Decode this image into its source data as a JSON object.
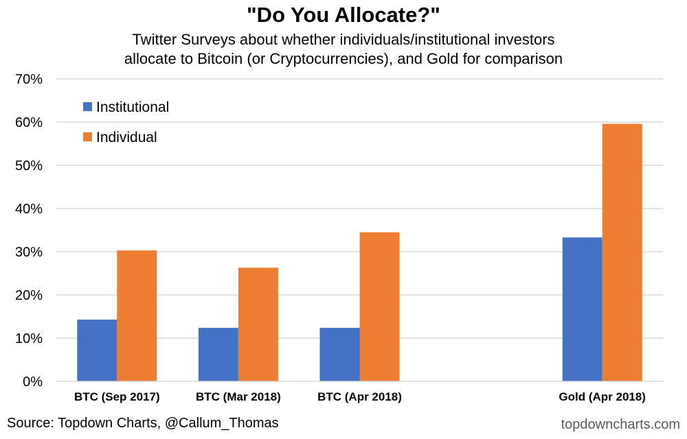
{
  "title": "\"Do You Allocate?\"",
  "subtitle_line1": "Twitter Surveys about whether individuals/institutional investors",
  "subtitle_line2": "allocate to Bitcoin (or Cryptocurrencies), and Gold for comparison",
  "source": "Source: Topdown Charts, @Callum_Thomas",
  "watermark": "topdowncharts.com",
  "colors": {
    "institutional": "#4472C4",
    "individual": "#ED7D31",
    "grid": "#d9d9d9"
  },
  "chart_data": {
    "type": "bar",
    "categories": [
      "BTC (Sep 2017)",
      "BTC (Mar 2018)",
      "BTC (Apr 2018)",
      "",
      "Gold  (Apr 2018)"
    ],
    "series": [
      {
        "name": "Institutional",
        "values": [
          14.3,
          12.4,
          12.4,
          null,
          33.3
        ]
      },
      {
        "name": "Individual",
        "values": [
          30.3,
          26.3,
          34.5,
          null,
          59.6
        ]
      }
    ],
    "ylim": [
      0,
      70
    ],
    "yticks": [
      0,
      10,
      20,
      30,
      40,
      50,
      60,
      70
    ],
    "ytick_labels": [
      "0%",
      "10%",
      "20%",
      "30%",
      "40%",
      "50%",
      "60%",
      "70%"
    ],
    "grid": true,
    "legend": "top-left"
  }
}
